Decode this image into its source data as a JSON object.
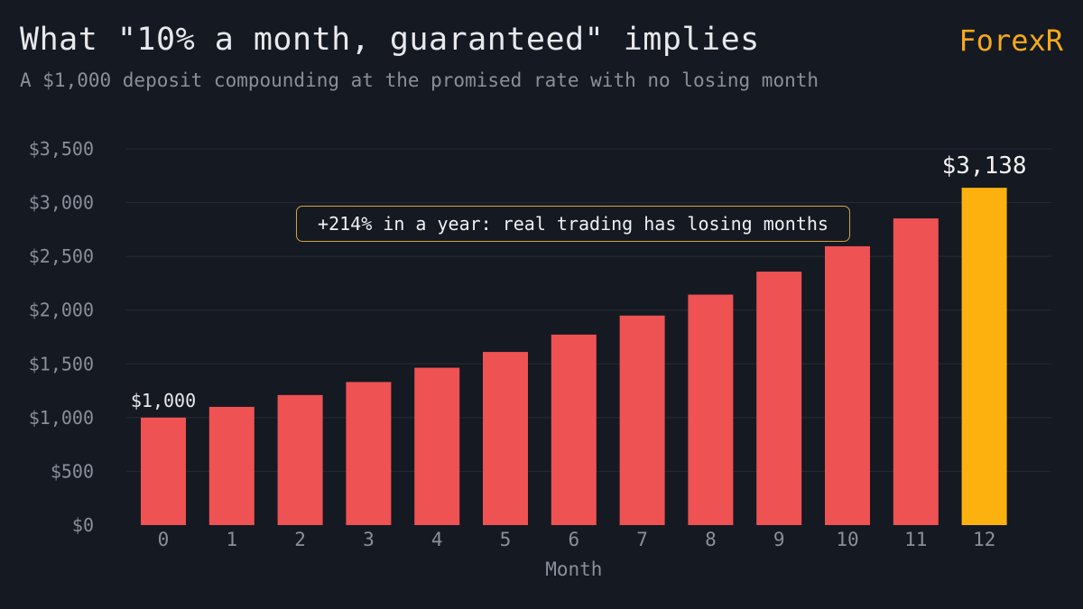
{
  "header": {
    "title": "What \"10% a month, guaranteed\" implies",
    "subtitle": "A $1,000 deposit compounding at the promised rate with no losing month",
    "brand": "ForexR"
  },
  "annotation": "+214% in a year: real trading has losing months",
  "colors": {
    "bar": "#ee5253",
    "highlight": "#fdb10f",
    "grid": "#262b35",
    "background": "#151922"
  },
  "chart_data": {
    "type": "bar",
    "title": "What \"10% a month, guaranteed\" implies",
    "subtitle": "A $1,000 deposit compounding at the promised rate with no losing month",
    "xlabel": "Month",
    "ylabel": "",
    "categories": [
      "0",
      "1",
      "2",
      "3",
      "4",
      "5",
      "6",
      "7",
      "8",
      "9",
      "10",
      "11",
      "12"
    ],
    "values": [
      1000,
      1100,
      1210,
      1331,
      1464,
      1611,
      1772,
      1949,
      2144,
      2358,
      2594,
      2853,
      3138
    ],
    "ylim": [
      0,
      3500
    ],
    "yticks": [
      0,
      500,
      1000,
      1500,
      2000,
      2500,
      3000,
      3500
    ],
    "ytick_labels": [
      "$0",
      "$500",
      "$1,000",
      "$1,500",
      "$2,000",
      "$2,500",
      "$3,000",
      "$3,500"
    ],
    "data_labels": [
      {
        "index": 0,
        "text": "$1,000"
      },
      {
        "index": 12,
        "text": "$3,138"
      }
    ],
    "highlight_index": 12,
    "grid": true
  }
}
